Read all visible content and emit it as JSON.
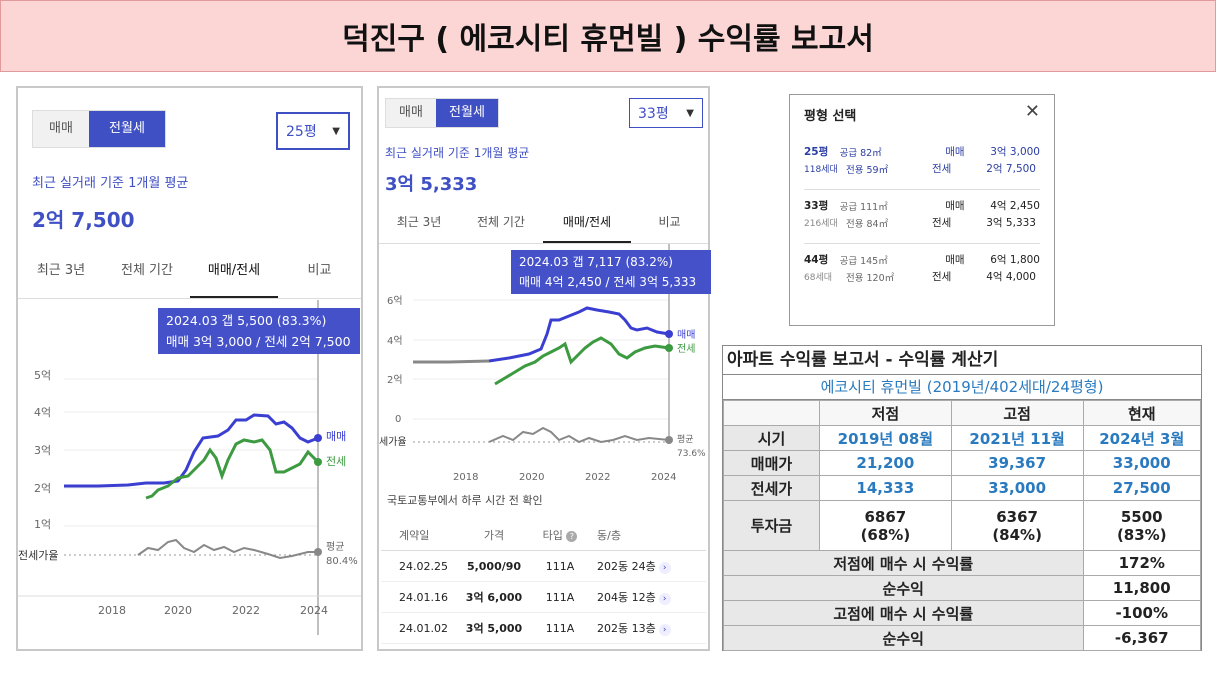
{
  "title": "덕진구  ( 에코시티 휴먼빌 ) 수익률 보고서",
  "panel1": {
    "toggle": [
      "매매",
      "전월세"
    ],
    "size": "25평",
    "subtitle": "최근 실거래 기준 1개월 평균",
    "price": "2억 7,500",
    "tabs": [
      "최근 3년",
      "전체 기간",
      "매매/전세",
      "비교"
    ],
    "tooltip1": "2024.03  갭 5,500 (83.3%)",
    "tooltip2": "매매 3억 3,000 / 전세 2억 7,500",
    "ylabels": [
      "5억",
      "4억",
      "3억",
      "2억",
      "1억"
    ],
    "xlabels": [
      "2018",
      "2020",
      "2022",
      "2024"
    ],
    "ratio_label": "전세가율",
    "legend_sale": "매매",
    "legend_jeonse": "전세",
    "avg_label": "평균",
    "avg_value": "80.4%"
  },
  "panel2": {
    "toggle": [
      "매매",
      "전월세"
    ],
    "size": "33평",
    "subtitle": "최근 실거래 기준 1개월 평균",
    "price": "3억 5,333",
    "tabs": [
      "최근 3년",
      "전체 기간",
      "매매/전세",
      "비교"
    ],
    "tooltip1": "2024.03  갭 7,117 (83.2%)",
    "tooltip2": "매매 4억 2,450 / 전세 3억 5,333",
    "ylabels": [
      "6억",
      "4억",
      "2억",
      "0"
    ],
    "xlabels": [
      "2018",
      "2020",
      "2022",
      "2024"
    ],
    "ratio_label": "세가율",
    "legend_sale": "매매",
    "legend_jeonse": "전세",
    "avg_label": "평균",
    "avg_value": "73.6%",
    "note": "국토교통부에서 하루 시간 전 확인",
    "table_headers": [
      "계약일",
      "가격",
      "타입",
      "동/층"
    ],
    "rows": [
      {
        "date": "24.02.25",
        "price": "5,000/90",
        "type": "111A",
        "dong": "202동 24층"
      },
      {
        "date": "24.01.16",
        "price": "3억 6,000",
        "type": "111A",
        "dong": "204동 12층"
      },
      {
        "date": "24.01.02",
        "price": "3억 5,000",
        "type": "111A",
        "dong": "202동 13층"
      }
    ]
  },
  "panel3": {
    "title": "평형 선택",
    "close": "✕",
    "items": [
      {
        "py": "25평",
        "count": "118세대",
        "supply": "공급 82㎡",
        "exclusive": "전용 59㎡",
        "sale_label": "매매",
        "sale": "3억 3,000",
        "jeonse_label": "전세",
        "jeonse": "2억 7,500"
      },
      {
        "py": "33평",
        "count": "216세대",
        "supply": "공급 111㎡",
        "exclusive": "전용 84㎡",
        "sale_label": "매매",
        "sale": "4억 2,450",
        "jeonse_label": "전세",
        "jeonse": "3억 5,333"
      },
      {
        "py": "44평",
        "count": "68세대",
        "supply": "공급 145㎡",
        "exclusive": "전용 120㎡",
        "sale_label": "매매",
        "sale": "6억 1,800",
        "jeonse_label": "전세",
        "jeonse": "4억 4,000"
      }
    ]
  },
  "calc": {
    "title": "아파트 수익률 보고서 - 수익률 계산기",
    "subtitle": "에코시티 휴먼빌 (2019년/402세대/24평형)",
    "headers": [
      "저점",
      "고점",
      "현재"
    ],
    "row_time": {
      "label": "시기",
      "vals": [
        "2019년 08월",
        "2021년 11월",
        "2024년 3월"
      ]
    },
    "row_sale": {
      "label": "매매가",
      "vals": [
        "21,200",
        "39,367",
        "33,000"
      ]
    },
    "row_jeonse": {
      "label": "전세가",
      "vals": [
        "14,333",
        "33,000",
        "27,500"
      ]
    },
    "row_invest": {
      "label": "투자금",
      "vals": [
        "6867",
        "6367",
        "5500"
      ],
      "pcts": [
        "(68%)",
        "(84%)",
        "(83%)"
      ]
    },
    "summary": [
      {
        "label": "저점에 매수 시 수익률",
        "value": "172%"
      },
      {
        "label": "순수익",
        "value": "11,800"
      },
      {
        "label": "고점에 매수 시 수익률",
        "value": "-100%"
      },
      {
        "label": "순수익",
        "value": "-6,367"
      }
    ]
  },
  "colors": {
    "accent": "#3f4fc4",
    "sale": "#3a3fd1",
    "jeonse": "#3c9a40",
    "calc_blue": "#2a7abf",
    "banner": "#fcd5d5"
  }
}
